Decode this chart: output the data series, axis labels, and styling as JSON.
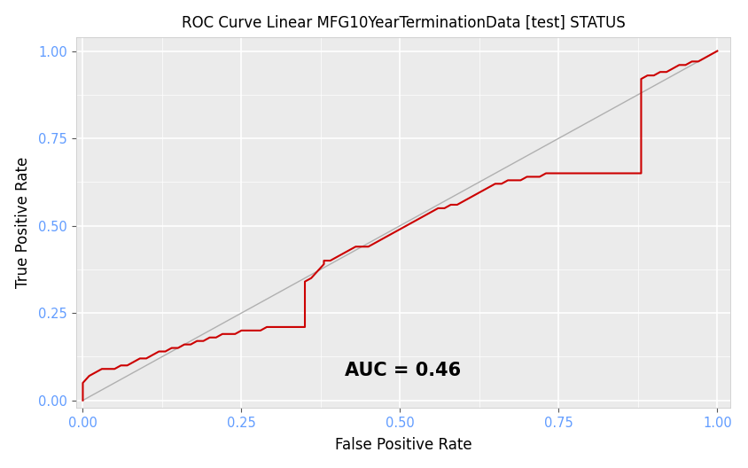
{
  "title": "ROC Curve Linear MFG10YearTerminationData [test] STATUS",
  "xlabel": "False Positive Rate",
  "ylabel": "True Positive Rate",
  "auc_text": "AUC = 0.46",
  "outer_bg": "#ffffff",
  "plot_bg_color": "#ebebeb",
  "roc_color": "#cc0000",
  "diag_color": "#b0b0b0",
  "title_fontsize": 12,
  "axis_label_fontsize": 12,
  "tick_label_color": "#619cff",
  "auc_fontsize": 15,
  "roc_fpr": [
    0.0,
    0.0,
    0.01,
    0.02,
    0.03,
    0.04,
    0.05,
    0.06,
    0.07,
    0.08,
    0.09,
    0.1,
    0.11,
    0.12,
    0.13,
    0.14,
    0.15,
    0.16,
    0.17,
    0.18,
    0.19,
    0.2,
    0.21,
    0.22,
    0.23,
    0.24,
    0.25,
    0.26,
    0.27,
    0.28,
    0.29,
    0.3,
    0.31,
    0.32,
    0.33,
    0.34,
    0.35,
    0.35,
    0.36,
    0.37,
    0.38,
    0.38,
    0.39,
    0.4,
    0.41,
    0.42,
    0.43,
    0.44,
    0.45,
    0.46,
    0.47,
    0.48,
    0.49,
    0.5,
    0.51,
    0.52,
    0.53,
    0.54,
    0.55,
    0.56,
    0.57,
    0.58,
    0.59,
    0.6,
    0.61,
    0.62,
    0.63,
    0.64,
    0.65,
    0.66,
    0.67,
    0.68,
    0.69,
    0.7,
    0.71,
    0.72,
    0.73,
    0.74,
    0.75,
    0.76,
    0.77,
    0.78,
    0.8,
    0.82,
    0.84,
    0.86,
    0.87,
    0.88,
    0.88,
    0.89,
    0.9,
    0.91,
    0.92,
    0.93,
    0.94,
    0.95,
    0.96,
    0.97,
    0.98,
    0.99,
    1.0
  ],
  "roc_tpr": [
    0.0,
    0.05,
    0.07,
    0.08,
    0.09,
    0.09,
    0.09,
    0.1,
    0.1,
    0.11,
    0.12,
    0.12,
    0.13,
    0.14,
    0.14,
    0.15,
    0.15,
    0.16,
    0.16,
    0.17,
    0.17,
    0.18,
    0.18,
    0.19,
    0.19,
    0.19,
    0.2,
    0.2,
    0.2,
    0.2,
    0.21,
    0.21,
    0.21,
    0.21,
    0.21,
    0.21,
    0.21,
    0.34,
    0.35,
    0.37,
    0.39,
    0.4,
    0.4,
    0.41,
    0.42,
    0.43,
    0.44,
    0.44,
    0.44,
    0.45,
    0.46,
    0.47,
    0.48,
    0.49,
    0.5,
    0.51,
    0.52,
    0.53,
    0.54,
    0.55,
    0.55,
    0.56,
    0.56,
    0.57,
    0.58,
    0.59,
    0.6,
    0.61,
    0.62,
    0.62,
    0.63,
    0.63,
    0.63,
    0.64,
    0.64,
    0.64,
    0.65,
    0.65,
    0.65,
    0.65,
    0.65,
    0.65,
    0.65,
    0.65,
    0.65,
    0.65,
    0.65,
    0.65,
    0.92,
    0.93,
    0.93,
    0.94,
    0.94,
    0.95,
    0.96,
    0.96,
    0.97,
    0.97,
    0.98,
    0.99,
    1.0
  ]
}
